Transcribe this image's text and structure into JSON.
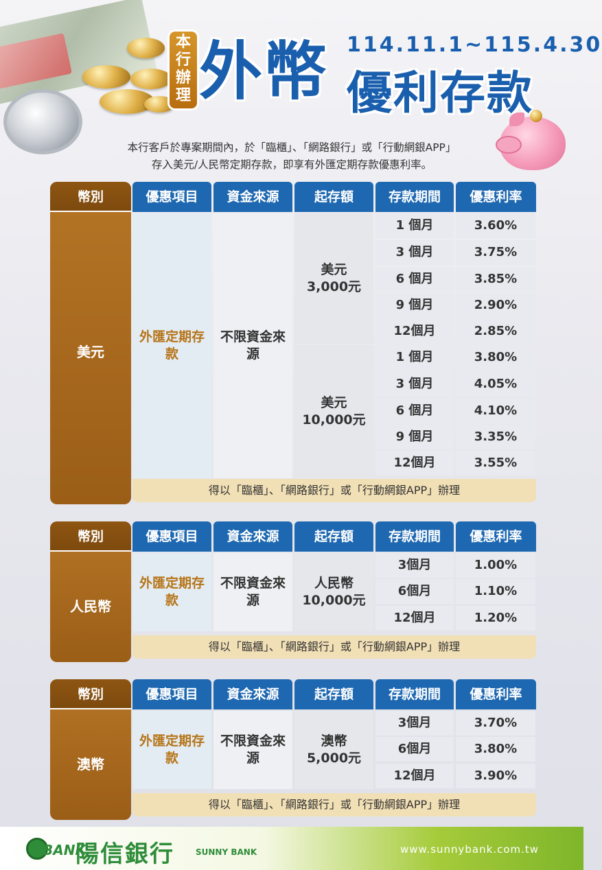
{
  "header": {
    "badge": "本行辦理",
    "title_main": "外幣",
    "date_range": "114.11.1~115.4.30",
    "title_sub": "優利存款",
    "intro_line1": "本行客戶於專案期間內，於「臨櫃」、「網路銀行」或「行動網銀APP」",
    "intro_line2": "存入美元/人民幣定期存款，即享有外匯定期存款優惠利率。"
  },
  "columns": {
    "currency": "幣別",
    "product": "優惠項目",
    "source": "資金來源",
    "min_amount": "起存額",
    "term": "存款期間",
    "rate": "優惠利率"
  },
  "usd": {
    "name": "美元",
    "product": "外匯定期存款",
    "source": "不限資金來源",
    "tier1": {
      "min_label": "美元",
      "min_amount": "3,000元",
      "rows": [
        {
          "term": "1 個月",
          "rate": "3.60%"
        },
        {
          "term": "3 個月",
          "rate": "3.75%"
        },
        {
          "term": "6 個月",
          "rate": "3.85%"
        },
        {
          "term": "9 個月",
          "rate": "2.90%"
        },
        {
          "term": "12個月",
          "rate": "2.85%"
        }
      ]
    },
    "tier2": {
      "min_label": "美元",
      "min_amount": "10,000元",
      "rows": [
        {
          "term": "1 個月",
          "rate": "3.80%"
        },
        {
          "term": "3 個月",
          "rate": "4.05%"
        },
        {
          "term": "6 個月",
          "rate": "4.10%"
        },
        {
          "term": "9 個月",
          "rate": "3.35%"
        },
        {
          "term": "12個月",
          "rate": "3.55%"
        }
      ]
    },
    "note": "得以「臨櫃」、「網路銀行」或「行動網銀APP」辦理"
  },
  "cny": {
    "name": "人民幣",
    "product": "外匯定期存款",
    "source": "不限資金來源",
    "min_label": "人民幣",
    "min_amount": "10,000元",
    "rows": [
      {
        "term": "3個月",
        "rate": "1.00%"
      },
      {
        "term": "6個月",
        "rate": "1.10%"
      },
      {
        "term": "12個月",
        "rate": "1.20%"
      }
    ],
    "note": "得以「臨櫃」、「網路銀行」或「行動網銀APP」辦理"
  },
  "aud": {
    "name": "澳幣",
    "product": "外匯定期存款",
    "source": "不限資金來源",
    "min_label": "澳幣",
    "min_amount": "5,000元",
    "rows": [
      {
        "term": "3個月",
        "rate": "3.70%"
      },
      {
        "term": "6個月",
        "rate": "3.80%"
      },
      {
        "term": "12個月",
        "rate": "3.90%"
      }
    ],
    "note": "得以「臨櫃」、「網路銀行」或「行動網銀APP」辦理"
  },
  "footer": {
    "logo_mark": "BANK",
    "bank_name_cn": "陽信銀行",
    "bank_name_en": "SUNNY BANK",
    "url": "www.sunnybank.com.tw"
  },
  "icons": [
    "globe-icon",
    "coin-icon",
    "piggy-bank-icon",
    "bank-logo-icon"
  ],
  "colors": {
    "brand_blue": "#1e68b1",
    "brown": "#9b5e17",
    "orange": "#b67418",
    "note_bg": "#f1dfb5",
    "green": "#2f8d3a"
  }
}
